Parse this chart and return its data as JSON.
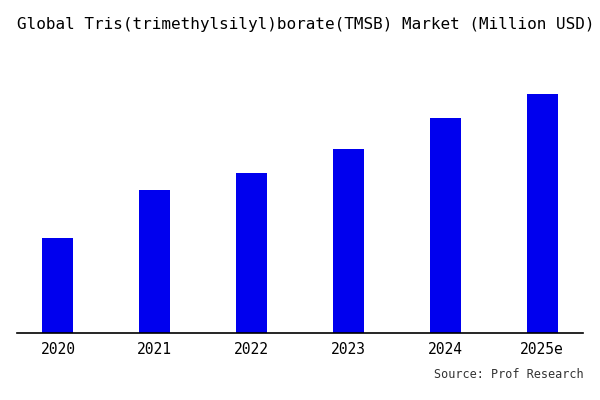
{
  "title": "Global Tris(trimethylsilyl)borate(TMSB) Market (Million USD)",
  "categories": [
    "2020",
    "2021",
    "2022",
    "2023",
    "2024",
    "2025e"
  ],
  "values": [
    28,
    42,
    47,
    54,
    63,
    70
  ],
  "bar_color": "#0000EE",
  "background_color": "#ffffff",
  "source_text": "Source: Prof Research",
  "title_fontsize": 11.5,
  "tick_fontsize": 10.5,
  "source_fontsize": 8.5,
  "ylim": [
    0,
    85
  ],
  "bar_width": 0.32
}
